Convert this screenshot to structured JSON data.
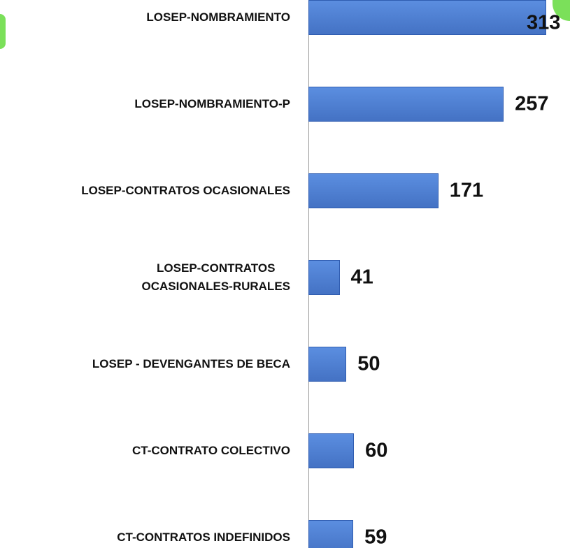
{
  "chart_data": {
    "type": "bar",
    "orientation": "horizontal",
    "color": "#4472c4",
    "categories": [
      "LOSEP-NOMBRAMIENTO",
      "LOSEP-NOMBRAMIENTO-P",
      "LOSEP-CONTRATOS OCASIONALES",
      "LOSEP-CONTRATOS\nOCASIONALES-RURALES",
      "LOSEP - DEVENGANTES DE BECA",
      "CT-CONTRATO COLECTIVO",
      "CT-CONTRATOS INDEFINIDOS"
    ],
    "values": [
      313,
      257,
      171,
      41,
      50,
      60,
      59
    ]
  }
}
